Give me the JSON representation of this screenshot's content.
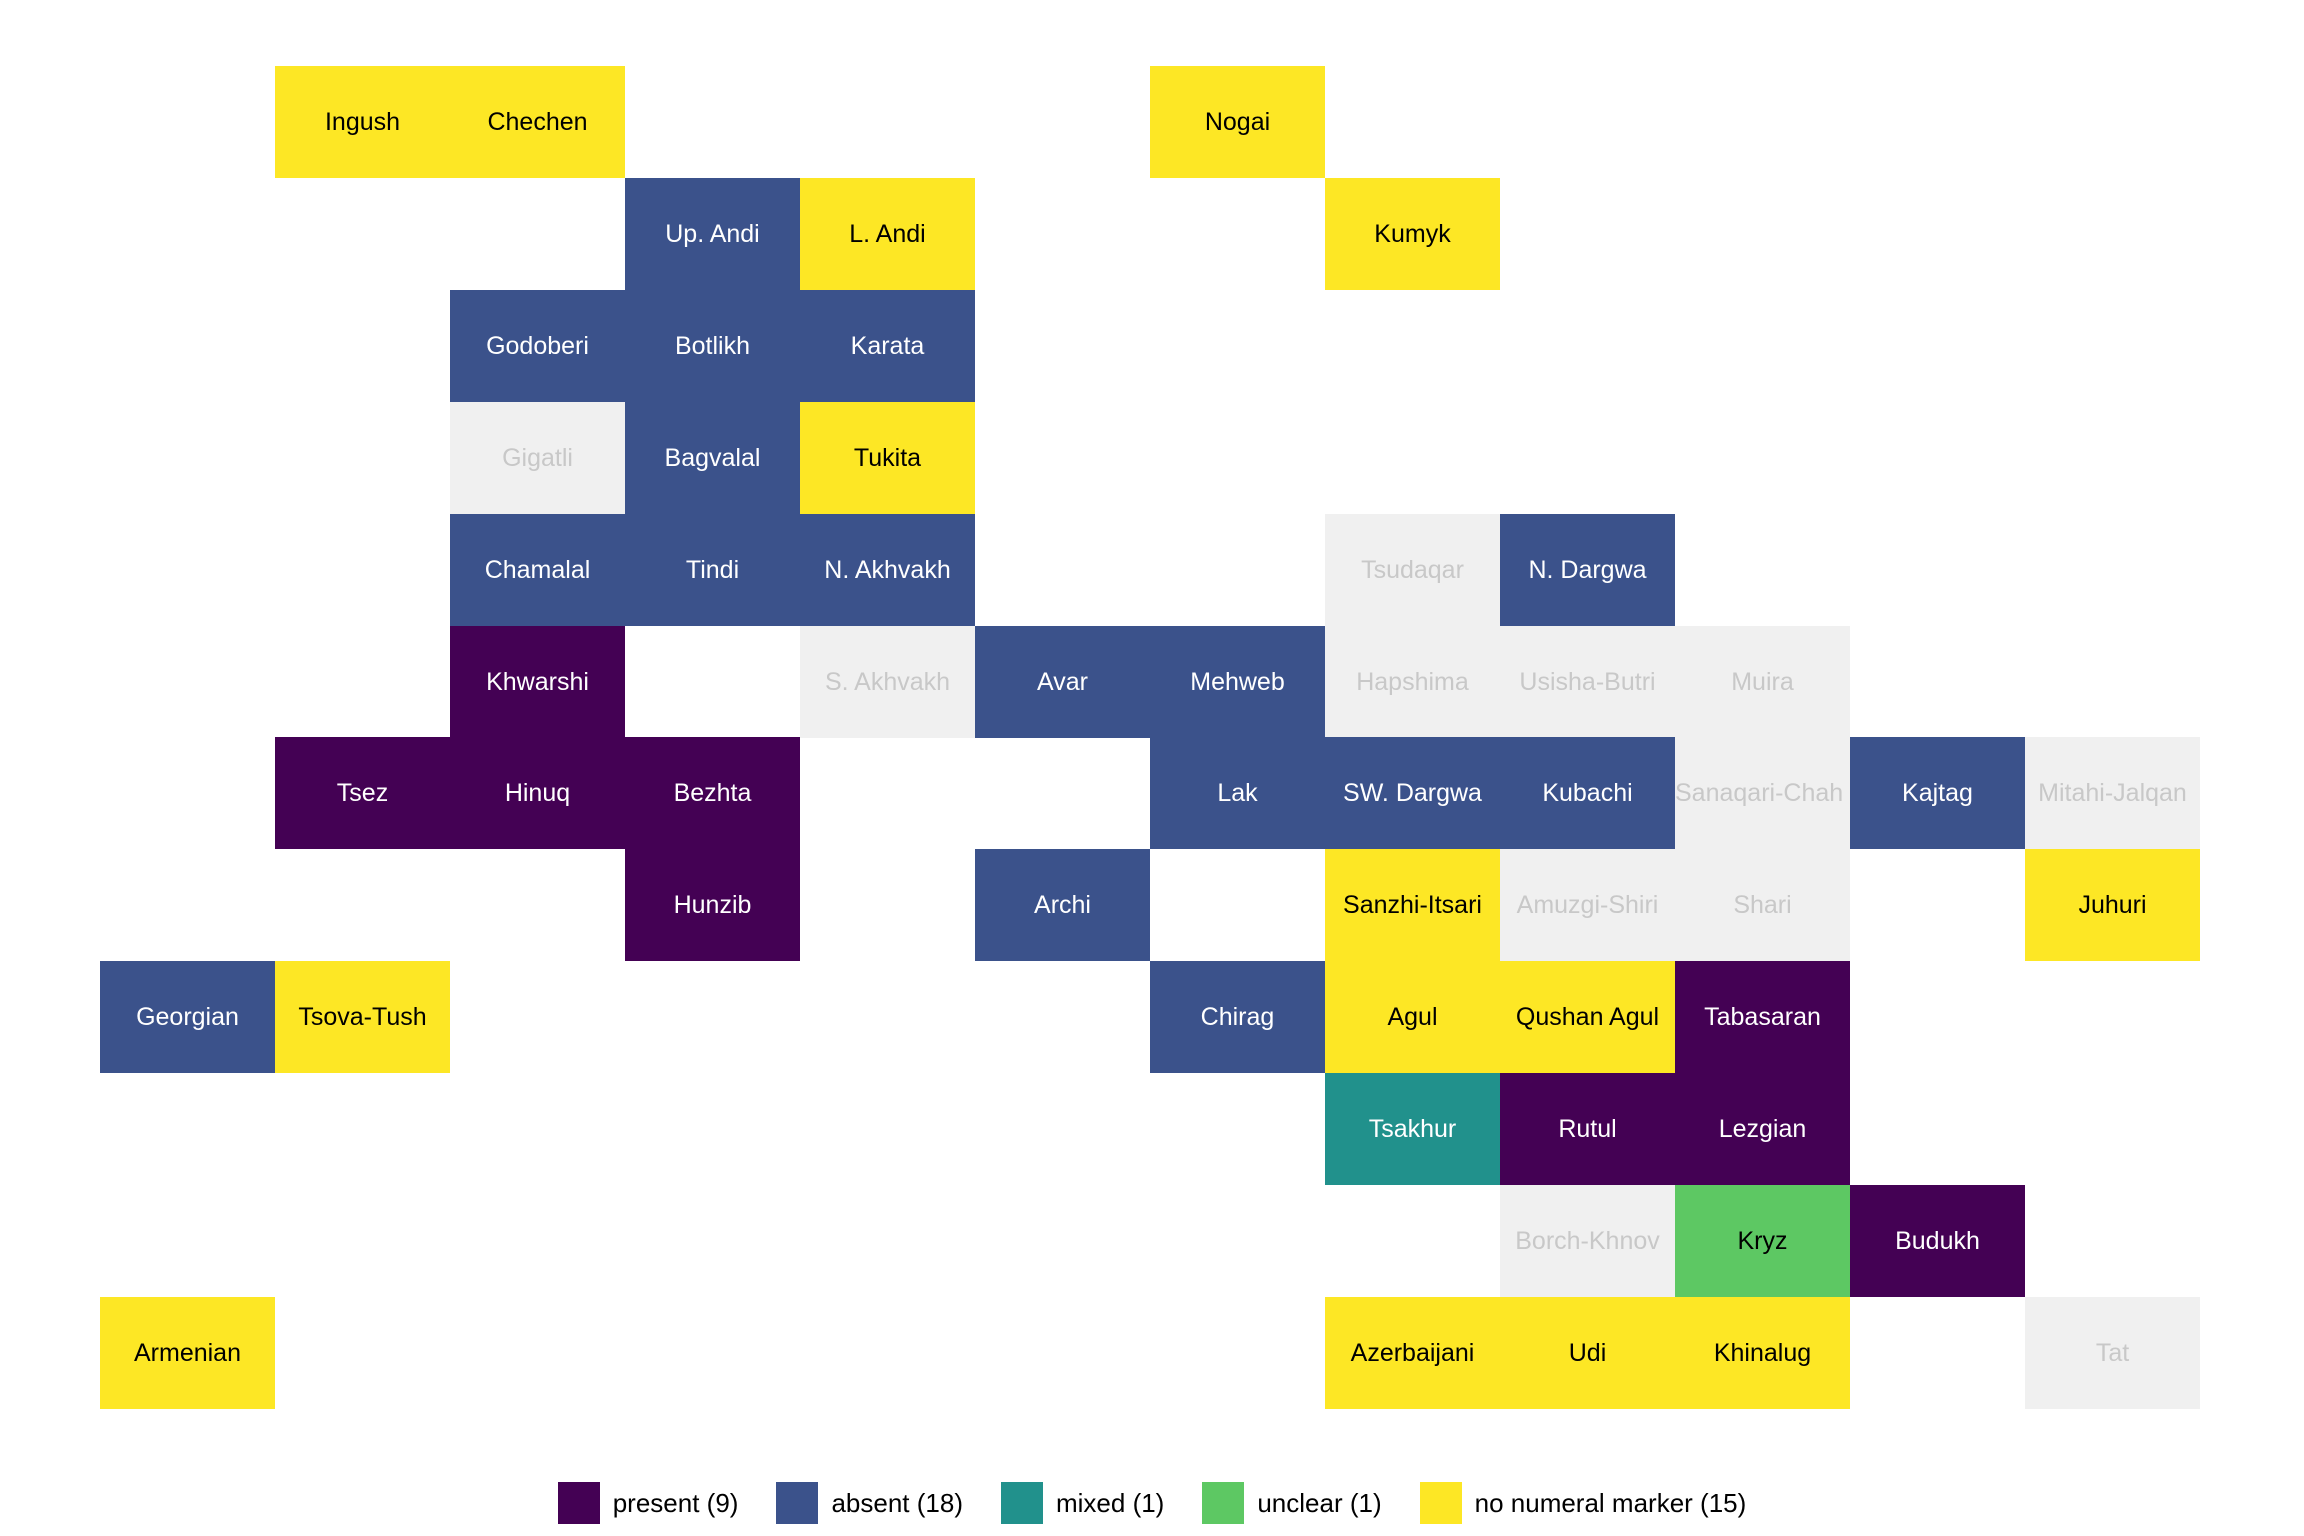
{
  "page": {
    "background": "#ffffff",
    "description": "Tile map of languages of Daghestan and neighbouring areas, coloured by numeral-marker feature value"
  },
  "chart_data": {
    "type": "heatmap",
    "subtype": "genealogical-tile-map",
    "title": "",
    "legend_position": "bottom",
    "grid": "12 columns x 12 rows, adjacent square-ish tiles, no axes",
    "statuses": {
      "present": {
        "color": "#440154",
        "text_color": "#ffffff"
      },
      "absent": {
        "color": "#3B528B",
        "text_color": "#ffffff"
      },
      "mixed": {
        "color": "#21918C",
        "text_color": "#ffffff"
      },
      "unclear": {
        "color": "#5DC863",
        "text_color": "#000000"
      },
      "no_marker": {
        "color": "#FDE725",
        "text_color": "#000000"
      },
      "no_data": {
        "color": "#F0F0F0",
        "text_color": "#C8C8C8"
      }
    },
    "legend": [
      {
        "label": "present (9)",
        "status": "present"
      },
      {
        "label": "absent (18)",
        "status": "absent"
      },
      {
        "label": "mixed (1)",
        "status": "mixed"
      },
      {
        "label": "unclear (1)",
        "status": "unclear"
      },
      {
        "label": "no numeral marker (15)",
        "status": "no_marker"
      }
    ],
    "cells": [
      {
        "label": "Ingush",
        "col": 1,
        "row": 0,
        "status": "no_marker"
      },
      {
        "label": "Chechen",
        "col": 2,
        "row": 0,
        "status": "no_marker"
      },
      {
        "label": "Nogai",
        "col": 6,
        "row": 0,
        "status": "no_marker"
      },
      {
        "label": "Up. Andi",
        "col": 3,
        "row": 1,
        "status": "absent"
      },
      {
        "label": "L. Andi",
        "col": 4,
        "row": 1,
        "status": "no_marker"
      },
      {
        "label": "Kumyk",
        "col": 7,
        "row": 1,
        "status": "no_marker"
      },
      {
        "label": "Godoberi",
        "col": 2,
        "row": 2,
        "status": "absent"
      },
      {
        "label": "Botlikh",
        "col": 3,
        "row": 2,
        "status": "absent"
      },
      {
        "label": "Karata",
        "col": 4,
        "row": 2,
        "status": "absent"
      },
      {
        "label": "Gigatli",
        "col": 2,
        "row": 3,
        "status": "no_data"
      },
      {
        "label": "Bagvalal",
        "col": 3,
        "row": 3,
        "status": "absent"
      },
      {
        "label": "Tukita",
        "col": 4,
        "row": 3,
        "status": "no_marker"
      },
      {
        "label": "Chamalal",
        "col": 2,
        "row": 4,
        "status": "absent"
      },
      {
        "label": "Tindi",
        "col": 3,
        "row": 4,
        "status": "absent"
      },
      {
        "label": "N. Akhvakh",
        "col": 4,
        "row": 4,
        "status": "absent"
      },
      {
        "label": "Tsudaqar",
        "col": 7,
        "row": 4,
        "status": "no_data"
      },
      {
        "label": "N. Dargwa",
        "col": 8,
        "row": 4,
        "status": "absent"
      },
      {
        "label": "Khwarshi",
        "col": 2,
        "row": 5,
        "status": "present"
      },
      {
        "label": "S. Akhvakh",
        "col": 4,
        "row": 5,
        "status": "no_data"
      },
      {
        "label": "Avar",
        "col": 5,
        "row": 5,
        "status": "absent"
      },
      {
        "label": "Mehweb",
        "col": 6,
        "row": 5,
        "status": "absent"
      },
      {
        "label": "Hapshima",
        "col": 7,
        "row": 5,
        "status": "no_data"
      },
      {
        "label": "Usisha-Butri",
        "col": 8,
        "row": 5,
        "status": "no_data"
      },
      {
        "label": "Muira",
        "col": 9,
        "row": 5,
        "status": "no_data"
      },
      {
        "label": "Tsez",
        "col": 1,
        "row": 6,
        "status": "present"
      },
      {
        "label": "Hinuq",
        "col": 2,
        "row": 6,
        "status": "present"
      },
      {
        "label": "Bezhta",
        "col": 3,
        "row": 6,
        "status": "present"
      },
      {
        "label": "Lak",
        "col": 6,
        "row": 6,
        "status": "absent"
      },
      {
        "label": "SW. Dargwa",
        "col": 7,
        "row": 6,
        "status": "absent"
      },
      {
        "label": "Kubachi",
        "col": 8,
        "row": 6,
        "status": "absent"
      },
      {
        "label": "Sanaqari-Chah",
        "col": 9,
        "row": 6,
        "status": "no_data",
        "clip": "left"
      },
      {
        "label": "Kajtag",
        "col": 10,
        "row": 6,
        "status": "absent"
      },
      {
        "label": "Mitahi-Jalqan",
        "col": 11,
        "row": 6,
        "status": "no_data"
      },
      {
        "label": "Hunzib",
        "col": 3,
        "row": 7,
        "status": "present"
      },
      {
        "label": "Archi",
        "col": 5,
        "row": 7,
        "status": "absent"
      },
      {
        "label": "Sanzhi-Itsari",
        "col": 7,
        "row": 7,
        "status": "no_marker"
      },
      {
        "label": "Amuzgi-Shiri",
        "col": 8,
        "row": 7,
        "status": "no_data"
      },
      {
        "label": "Shari",
        "col": 9,
        "row": 7,
        "status": "no_data"
      },
      {
        "label": "Juhuri",
        "col": 11,
        "row": 7,
        "status": "no_marker"
      },
      {
        "label": "Georgian",
        "col": 0,
        "row": 8,
        "status": "absent"
      },
      {
        "label": "Tsova-Tush",
        "col": 1,
        "row": 8,
        "status": "no_marker"
      },
      {
        "label": "Chirag",
        "col": 6,
        "row": 8,
        "status": "absent"
      },
      {
        "label": "Agul",
        "col": 7,
        "row": 8,
        "status": "no_marker"
      },
      {
        "label": "Qushan Agul",
        "col": 8,
        "row": 8,
        "status": "no_marker"
      },
      {
        "label": "Tabasaran",
        "col": 9,
        "row": 8,
        "status": "present"
      },
      {
        "label": "Tsakhur",
        "col": 7,
        "row": 9,
        "status": "mixed"
      },
      {
        "label": "Rutul",
        "col": 8,
        "row": 9,
        "status": "present"
      },
      {
        "label": "Lezgian",
        "col": 9,
        "row": 9,
        "status": "present"
      },
      {
        "label": "Borch-Khnov",
        "col": 8,
        "row": 10,
        "status": "no_data"
      },
      {
        "label": "Kryz",
        "col": 9,
        "row": 10,
        "status": "unclear"
      },
      {
        "label": "Budukh",
        "col": 10,
        "row": 10,
        "status": "present"
      },
      {
        "label": "Armenian",
        "col": 0,
        "row": 11,
        "status": "no_marker"
      },
      {
        "label": "Azerbaijani",
        "col": 7,
        "row": 11,
        "status": "no_marker"
      },
      {
        "label": "Udi",
        "col": 8,
        "row": 11,
        "status": "no_marker"
      },
      {
        "label": "Khinalug",
        "col": 9,
        "row": 11,
        "status": "no_marker"
      },
      {
        "label": "Tat",
        "col": 11,
        "row": 11,
        "status": "no_data"
      }
    ]
  }
}
